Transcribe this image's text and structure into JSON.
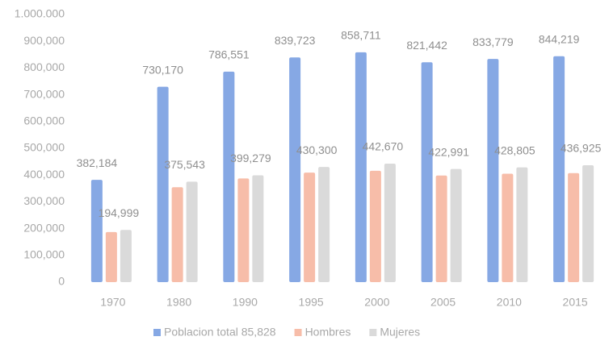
{
  "chart_data": {
    "type": "bar",
    "categories": [
      "1970",
      "1980",
      "1990",
      "1995",
      "2000",
      "2005",
      "2010",
      "2015"
    ],
    "series": [
      {
        "name": "Poblacion total 85,828",
        "color": "#86a8e4",
        "values": [
          382184,
          730170,
          786551,
          839723,
          858711,
          821442,
          833779,
          844219
        ],
        "value_labels": [
          "382,184",
          "730,170",
          "786,551",
          "839,723",
          "858,711",
          "821,442",
          "833,779",
          "844,219"
        ]
      },
      {
        "name": "Hombres",
        "color": "#f7bda9",
        "values": [
          187185,
          354627,
          387272,
          409423,
          416041,
          398451,
          404974,
          407294
        ]
      },
      {
        "name": "Mujeres",
        "color": "#dadada",
        "values": [
          194999,
          375543,
          399279,
          430300,
          442670,
          422991,
          428805,
          436925
        ],
        "value_labels": [
          "194,999",
          "375,543",
          "399,279",
          "430,300",
          "442,670",
          "422,991",
          "428,805",
          "436,925"
        ]
      }
    ],
    "ylim": [
      0,
      1000000
    ],
    "yticks": [
      0,
      {
        "value": 100000,
        "label": "100,000"
      },
      {
        "value": 200000,
        "label": "200,000"
      },
      {
        "value": 300000,
        "label": "300,000"
      },
      {
        "value": 400000,
        "label": "400,000"
      },
      {
        "value": 500000,
        "label": "500,000"
      },
      {
        "value": 600000,
        "label": "600,000"
      },
      {
        "value": 700000,
        "label": "700,000"
      },
      {
        "value": 800000,
        "label": "800,000"
      },
      {
        "value": 900000,
        "label": "900,000"
      },
      {
        "value": 1000000,
        "label": "1.000.000"
      }
    ],
    "legend": "bottom"
  }
}
